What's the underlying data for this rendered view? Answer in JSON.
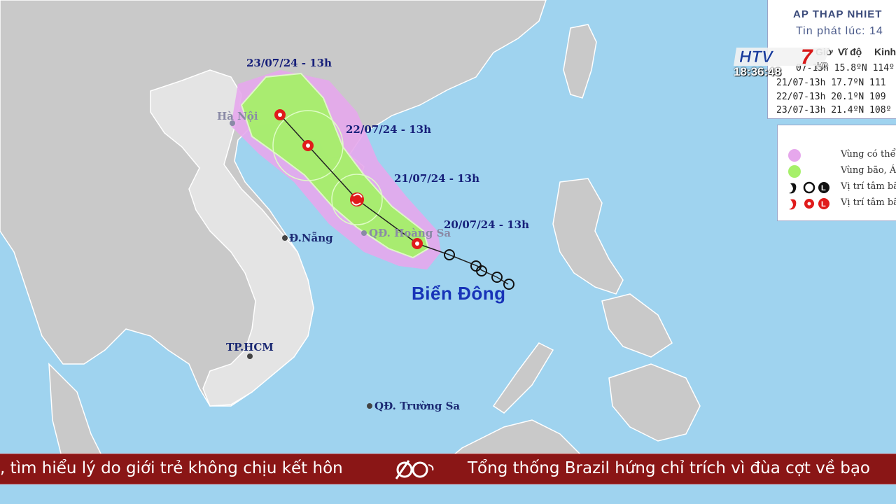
{
  "map": {
    "sea_name": "Biển Đông",
    "forecast_dates": [
      "20/07/24 - 13h",
      "21/07/24 - 13h",
      "22/07/24 - 13h",
      "23/07/24 - 13h"
    ],
    "places": {
      "hanoi": "Hà Nội",
      "danang": "Đ.Nẵng",
      "hoangsa": "QĐ. Hoàng Sa",
      "hcm": "TP.HCM",
      "truongsa": "QĐ. Trường Sa"
    },
    "colors": {
      "sea": "#9fd3ef",
      "land": "#c9c9c9",
      "uncertainty_zone": "#e6a7ec",
      "storm_zone": "#a6f06a",
      "track_red": "#e01b1b"
    }
  },
  "info_panel": {
    "title": "AP THAP NHIET",
    "issued": "Tin phát lúc: 14",
    "headers": [
      "Giờ",
      "Vĩ độ",
      "Kinh"
    ],
    "rows": [
      "07-13h 15.8ºN 114º",
      "21/07-13h 17.7ºN 111",
      "22/07-13h 20.1ºN 109",
      "23/07-13h 21.4ºN 108º"
    ]
  },
  "legend": {
    "items": [
      {
        "text": "Vùng có thể",
        "icon": "pink-circle-icon"
      },
      {
        "text": "Vùng bão, Á",
        "icon": "green-circle-icon"
      },
      {
        "text": "Vị trí tâm bã",
        "icon": "black-storm-symbols-icon"
      },
      {
        "text": "Vị trí tâm bã",
        "icon": "red-storm-symbols-icon"
      }
    ]
  },
  "overlay": {
    "channel_logo": "HTV7 HD",
    "clock": "18:36:48"
  },
  "ticker": {
    "left_text": ", tìm hiểu lý do giới trẻ không chịu kết hôn",
    "right_text": "Tổng thống Brazil hứng chỉ trích vì đùa cợt về bạo",
    "logo": "60s-logo-icon"
  }
}
